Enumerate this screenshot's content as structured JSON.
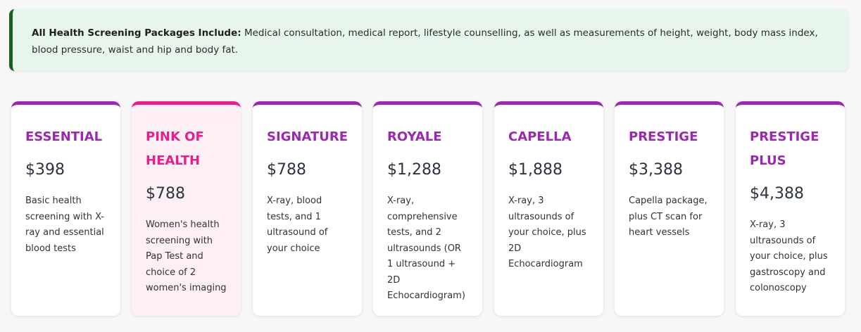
{
  "notice": {
    "label": "All Health Screening Packages Include:",
    "text": " Medical consultation, medical report, lifestyle counselling, as well as measurements of height, weight, body mass index, blood pressure, waist and hip and body fat."
  },
  "packages": [
    {
      "name": "ESSENTIAL",
      "price": "$398",
      "description": "Basic health screening with X-ray and essential blood tests",
      "accent": "#9c27b0"
    },
    {
      "name": "PINK OF HEALTH",
      "price": "$788",
      "description": "Women's health screening with Pap Test and choice of 2 women's imaging",
      "accent": "#e91e8c"
    },
    {
      "name": "SIGNATURE",
      "price": "$788",
      "description": "X-ray, blood tests, and 1 ultrasound of your choice",
      "accent": "#9c27b0"
    },
    {
      "name": "ROYALE",
      "price": "$1,288",
      "description": "X-ray, comprehensive tests, and 2 ultrasounds (OR 1 ultrasound + 2D Echocardiogram)",
      "accent": "#9c27b0"
    },
    {
      "name": "CAPELLA",
      "price": "$1,888",
      "description": "X-ray, 3 ultrasounds of your choice, plus 2D Echocardiogram",
      "accent": "#9c27b0"
    },
    {
      "name": "PRESTIGE",
      "price": "$3,388",
      "description": "Capella package, plus CT scan for heart vessels",
      "accent": "#9c27b0"
    },
    {
      "name": "PRESTIGE PLUS",
      "price": "$4,388",
      "description": "X-ray, 3 ultrasounds of your choice, plus gastroscopy and colonoscopy",
      "accent": "#9c27b0"
    }
  ]
}
